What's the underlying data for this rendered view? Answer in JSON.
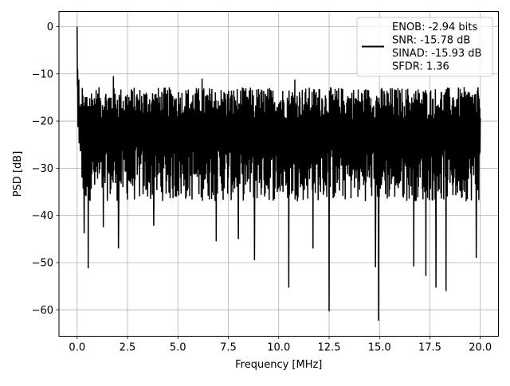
{
  "chart_data": {
    "type": "line",
    "title": "",
    "xlabel": "Frequency [MHz]",
    "ylabel": "PSD [dB]",
    "xlim": [
      -0.9,
      20.9
    ],
    "ylim": [
      -65.6,
      3.2
    ],
    "xticks": [
      0,
      2.5,
      5,
      7.5,
      10,
      12.5,
      15,
      17.5,
      20
    ],
    "xtick_labels": [
      "0.0",
      "2.5",
      "5.0",
      "7.5",
      "10.0",
      "12.5",
      "15.0",
      "17.5",
      "20.0"
    ],
    "yticks": [
      0,
      -10,
      -20,
      -30,
      -40,
      -50,
      -60
    ],
    "ytick_labels": [
      "0",
      "−10",
      "−20",
      "−30",
      "−40",
      "−50",
      "−60"
    ],
    "grid": true,
    "legend_position": "top-right",
    "legend_entries": [
      "ENOB: -2.94 bits",
      "SNR: -15.78 dB",
      "SINAD: -15.93 dB",
      "SFDR: 1.36"
    ],
    "series": [
      {
        "color": "#000000",
        "x_range": [
          0,
          20
        ],
        "peak": {
          "x": 0.0,
          "y": 0.0
        },
        "noise_floor": {
          "upper_y": -17,
          "lower_y": -31
        },
        "notable_dips": [
          {
            "x": 0.35,
            "y": -43.8
          },
          {
            "x": 0.55,
            "y": -51.2
          },
          {
            "x": 1.3,
            "y": -42.5
          },
          {
            "x": 2.05,
            "y": -47.0
          },
          {
            "x": 3.8,
            "y": -42.2
          },
          {
            "x": 6.9,
            "y": -45.5
          },
          {
            "x": 8.0,
            "y": -45.0
          },
          {
            "x": 8.8,
            "y": -49.5
          },
          {
            "x": 10.5,
            "y": -55.3
          },
          {
            "x": 11.7,
            "y": -47.0
          },
          {
            "x": 12.5,
            "y": -60.3
          },
          {
            "x": 14.8,
            "y": -51.0
          },
          {
            "x": 14.95,
            "y": -62.3
          },
          {
            "x": 16.7,
            "y": -50.8
          },
          {
            "x": 17.3,
            "y": -52.8
          },
          {
            "x": 17.8,
            "y": -55.3
          },
          {
            "x": 18.3,
            "y": -56.0
          },
          {
            "x": 19.8,
            "y": -49.0
          }
        ],
        "notable_peaks": [
          {
            "x": 1.8,
            "y": -10.5
          },
          {
            "x": 6.2,
            "y": -11.0
          },
          {
            "x": 10.8,
            "y": -11.2
          },
          {
            "x": 12.0,
            "y": -13.2
          },
          {
            "x": 19.9,
            "y": -15.0
          }
        ]
      }
    ]
  }
}
